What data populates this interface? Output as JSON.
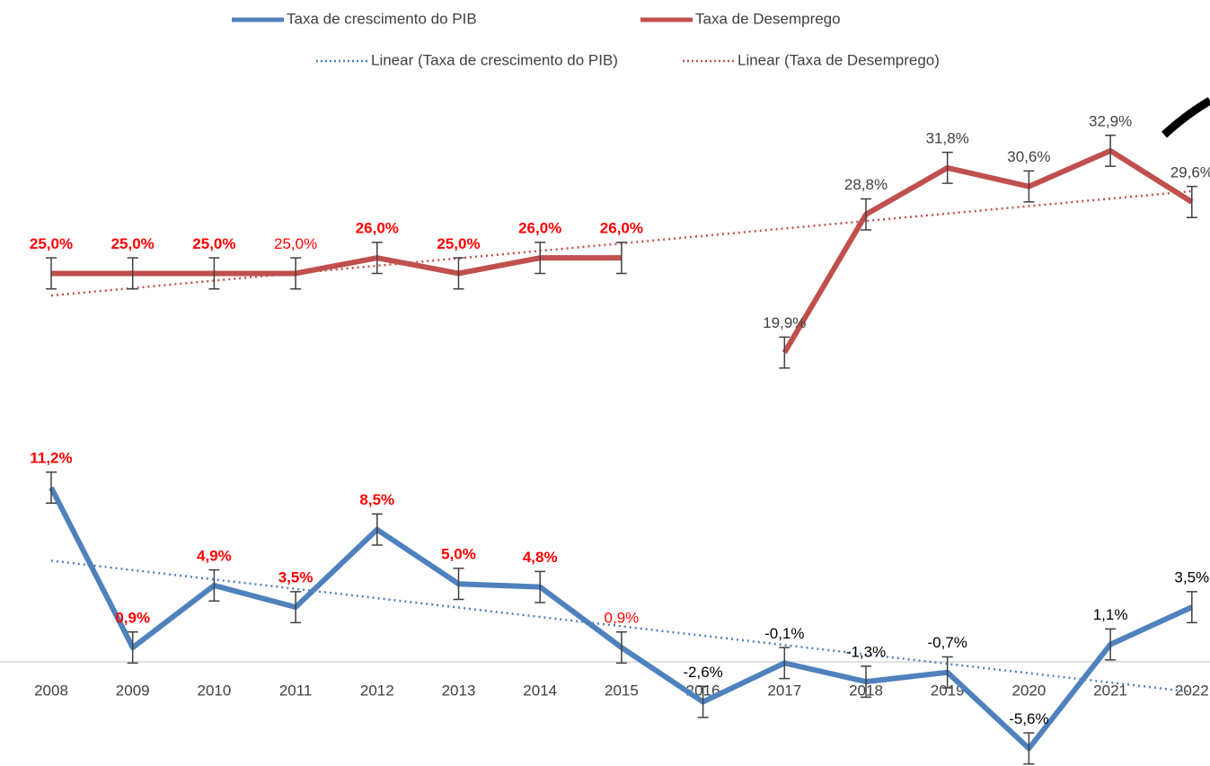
{
  "chart_data": {
    "type": "line",
    "categories": [
      "2008",
      "2009",
      "2010",
      "2011",
      "2012",
      "2013",
      "2014",
      "2015",
      "2016",
      "2017",
      "2018",
      "2019",
      "2020",
      "2021",
      "2022"
    ],
    "series": [
      {
        "name": "Taxa de crescimento do PIB",
        "color": "#4f81bd",
        "trendline_name": "Linear (Taxa de crescimento do PIB)",
        "values": [
          11.2,
          0.9,
          4.9,
          3.5,
          8.5,
          5.0,
          4.8,
          0.9,
          -2.6,
          -0.1,
          -1.3,
          -0.7,
          -5.6,
          1.1,
          3.5
        ],
        "value_labels": [
          "11,2%",
          "0,9%",
          "4,9%",
          "3,5%",
          "8,5%",
          "5,0%",
          "4,8%",
          "0,9%",
          "-2,6%",
          "-0,1%",
          "-1,3%",
          "-0,7%",
          "-5,6%",
          "1,1%",
          "3,5%"
        ],
        "label_colors": [
          "#ff0000",
          "#ff0000",
          "#ff0000",
          "#ff0000",
          "#ff0000",
          "#ff0000",
          "#ff0000",
          "#ff0000",
          "#000000",
          "#000000",
          "#000000",
          "#000000",
          "#000000",
          "#000000",
          "#000000"
        ],
        "label_bold": [
          true,
          true,
          true,
          true,
          true,
          true,
          true,
          false,
          false,
          false,
          false,
          false,
          false,
          false,
          false
        ],
        "error": 1
      },
      {
        "name": "Taxa de Desemprego",
        "color": "#c0504d",
        "trendline_name": "Linear (Taxa de Desemprego)",
        "values": [
          25.0,
          25.0,
          25.0,
          25.0,
          26.0,
          25.0,
          26.0,
          26.0,
          null,
          19.9,
          28.8,
          31.8,
          30.6,
          32.9,
          29.6
        ],
        "value_labels": [
          "25,0%",
          "25,0%",
          "25,0%",
          "25,0%",
          "26,0%",
          "25,0%",
          "26,0%",
          "26,0%",
          null,
          "19,9%",
          "28,8%",
          "31,8%",
          "30,6%",
          "32,9%",
          "29,6%"
        ],
        "label_colors": [
          "#ff0000",
          "#ff0000",
          "#ff0000",
          "#ff0000",
          "#ff0000",
          "#ff0000",
          "#ff0000",
          "#ff0000",
          null,
          "#404040",
          "#404040",
          "#404040",
          "#404040",
          "#404040",
          "#404040"
        ],
        "label_bold": [
          true,
          true,
          true,
          false,
          true,
          true,
          true,
          true,
          null,
          false,
          false,
          false,
          false,
          false,
          false
        ],
        "error": 1
      }
    ],
    "ylim": [
      -6.5,
      37
    ]
  }
}
